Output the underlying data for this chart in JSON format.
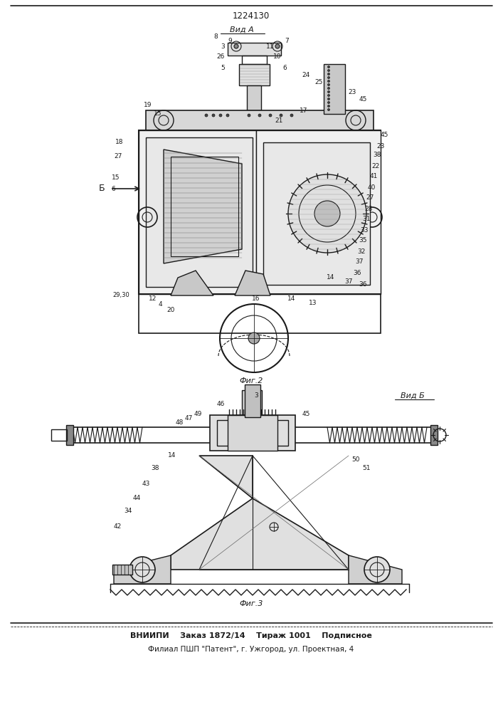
{
  "patent_number": "1224130",
  "view_a_label": "Вид А",
  "view_b_label": "Вид Б",
  "fig2_label": "Фиг.2",
  "fig3_label": "Фиг.3",
  "footer_line1": "ВНИИПИ    Заказ 1872/14    Тираж 1001    Подписное",
  "footer_line2": "Филиал ПШП \"Патент\", г. Ужгород, ул. Проектная, 4",
  "bg_color": "#ffffff",
  "lc": "#1a1a1a",
  "fig_width": 7.07,
  "fig_height": 10.0,
  "dpi": 100
}
